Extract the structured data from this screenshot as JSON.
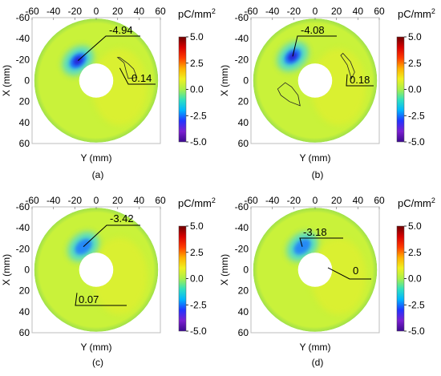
{
  "figure": {
    "colors": {
      "disk_base": "#c9f23a",
      "disk_rim": "#9fe04a",
      "negative_core": "#2a1ad0",
      "negative_mid": "#1e78ff",
      "negative_halo": "#3ad6e8",
      "positive_patch": "#e8ee2c",
      "plot_frame": "#bdbdbd",
      "colorbar_stops": [
        "#3b0a8f",
        "#7b1fd0",
        "#2233ff",
        "#00b4ff",
        "#2fe0c0",
        "#a8f04a",
        "#f0f020",
        "#ffb000",
        "#ff3a00",
        "#d80000",
        "#6e0000"
      ]
    }
  },
  "chart_data": [
    {
      "panel": "(a)",
      "type": "heatmap",
      "xlabel": "Y (mm)",
      "ylabel": "X (mm)",
      "x_ticks": [
        "-60",
        "-40",
        "-20",
        "0",
        "20",
        "40",
        "60"
      ],
      "y_ticks": [
        "-60",
        "-40",
        "-20",
        "0",
        "20",
        "40",
        "60"
      ],
      "xlim": [
        -60,
        60
      ],
      "ylim": [
        -60,
        60
      ],
      "y_inverted": true,
      "colorbar": {
        "title": "pC/mm",
        "title_sup": "2",
        "range": [
          -5,
          5
        ],
        "ticks": [
          "5.0",
          "2.5",
          "0.0",
          "-2.5",
          "-5.0"
        ]
      },
      "annotations": [
        {
          "text": "-4.94",
          "target": [
            -17,
            -19
          ]
        },
        {
          "text": "0.14",
          "target": [
            22,
            -12
          ]
        }
      ],
      "contour": [
        [
          20,
          -22
        ],
        [
          26,
          -17
        ],
        [
          28,
          -9
        ],
        [
          30,
          -2
        ],
        [
          38,
          -3
        ],
        [
          35,
          -11
        ],
        [
          30,
          -16
        ],
        [
          22,
          -22
        ]
      ]
    },
    {
      "panel": "(b)",
      "type": "heatmap",
      "xlabel": "Y (mm)",
      "ylabel": "X (mm)",
      "x_ticks": [
        "-60",
        "-40",
        "-20",
        "0",
        "20",
        "40",
        "60"
      ],
      "y_ticks": [
        "-60",
        "-40",
        "-20",
        "0",
        "20",
        "40",
        "60"
      ],
      "xlim": [
        -60,
        60
      ],
      "ylim": [
        -60,
        60
      ],
      "y_inverted": true,
      "colorbar": {
        "title": "pC/mm",
        "title_sup": "2",
        "range": [
          -5,
          5
        ],
        "ticks": [
          "5.0",
          "2.5",
          "0.0",
          "-2.5",
          "-5.0"
        ]
      },
      "annotations": [
        {
          "text": "-4.08",
          "target": [
            -21,
            -23
          ]
        },
        {
          "text": "0.18",
          "target": [
            30,
            -6
          ]
        }
      ],
      "contour": [
        [
          24,
          -24
        ],
        [
          30,
          -15
        ],
        [
          34,
          -2
        ],
        [
          37,
          -8
        ],
        [
          33,
          -18
        ],
        [
          26,
          -26
        ]
      ],
      "contour2": [
        [
          -35,
          8
        ],
        [
          -28,
          2
        ],
        [
          -22,
          6
        ],
        [
          -16,
          14
        ],
        [
          -14,
          24
        ],
        [
          -24,
          20
        ],
        [
          -32,
          14
        ]
      ]
    },
    {
      "panel": "(c)",
      "type": "heatmap",
      "xlabel": "Y (mm)",
      "ylabel": "X (mm)",
      "x_ticks": [
        "-60",
        "-40",
        "-20",
        "0",
        "20",
        "40",
        "60"
      ],
      "y_ticks": [
        "-60",
        "-40",
        "-20",
        "0",
        "20",
        "40",
        "60"
      ],
      "xlim": [
        -60,
        60
      ],
      "ylim": [
        -60,
        60
      ],
      "y_inverted": true,
      "colorbar": {
        "title": "pC/mm",
        "title_sup": "2",
        "range": [
          -5,
          5
        ],
        "ticks": [
          "5.0",
          "2.5",
          "0.0",
          "-2.5",
          "-5.0"
        ]
      },
      "annotations": [
        {
          "text": "-3.42",
          "target": [
            -12,
            -22
          ]
        },
        {
          "text": "0.07",
          "target": [
            -18,
            22
          ]
        }
      ]
    },
    {
      "panel": "(d)",
      "type": "heatmap",
      "xlabel": "Y (mm)",
      "ylabel": "X (mm)",
      "x_ticks": [
        "-60",
        "-40",
        "-20",
        "0",
        "20",
        "40",
        "60"
      ],
      "y_ticks": [
        "-60",
        "-40",
        "-20",
        "0",
        "20",
        "40",
        "60"
      ],
      "xlim": [
        -60,
        60
      ],
      "ylim": [
        -60,
        60
      ],
      "y_inverted": true,
      "colorbar": {
        "title": "pC/mm",
        "title_sup": "2",
        "range": [
          -5,
          5
        ],
        "ticks": [
          "5.0",
          "2.5",
          "0.0",
          "-2.5",
          "-5.0"
        ]
      },
      "annotations": [
        {
          "text": "-3.18",
          "target": [
            -12,
            -22
          ]
        },
        {
          "text": "0",
          "target": [
            12,
            -2
          ]
        }
      ]
    }
  ]
}
